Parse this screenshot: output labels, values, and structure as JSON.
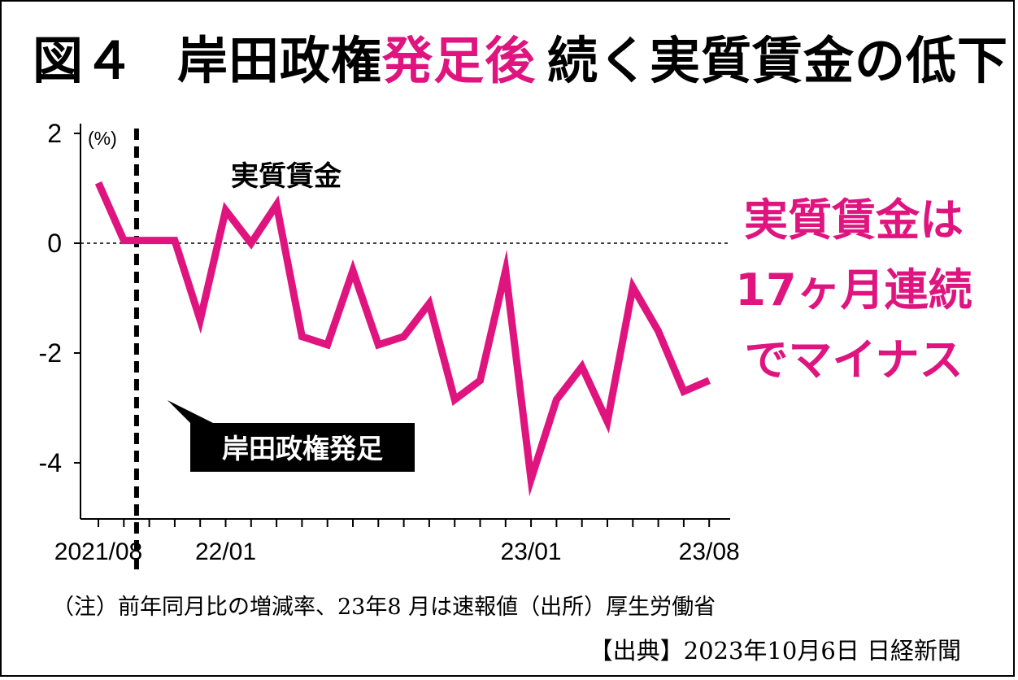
{
  "title": {
    "prefix": "図４",
    "part1": "岸田政権",
    "highlight": "発足後",
    "part2": "続く実質賃金の低下",
    "accent_color": "#e0147f"
  },
  "callout": {
    "line1": "実質賃金は",
    "line2": "17ヶ月連続",
    "line3": "でマイナス"
  },
  "note": "（注）前年同月比の増減率、23年8 月は速報値（出所）厚生労働省",
  "source": "【出典】2023年10月6日 日経新聞",
  "chart_data": {
    "type": "line",
    "unit_label": "(%)",
    "ylim": [
      -5,
      2
    ],
    "y_ticks": [
      2,
      0,
      -2,
      -4
    ],
    "y_tick_labels": [
      "2",
      "0",
      "-2",
      "-4"
    ],
    "x_tick_labels": [
      {
        "index": 0,
        "label": "2021/08"
      },
      {
        "index": 5,
        "label": "22/01"
      },
      {
        "index": 17,
        "label": "23/01"
      },
      {
        "index": 24,
        "label": "23/08"
      }
    ],
    "reference_line": 0,
    "event": {
      "index": 2,
      "label": "岸田政権発足"
    },
    "series": [
      {
        "name": "実質賃金",
        "color": "#e0147f",
        "x": [
          "2021/08",
          "2021/09",
          "2021/10",
          "2021/11",
          "2021/12",
          "2022/01",
          "2022/02",
          "2022/03",
          "2022/04",
          "2022/05",
          "2022/06",
          "2022/07",
          "2022/08",
          "2022/09",
          "2022/10",
          "2022/11",
          "2022/12",
          "2023/01",
          "2023/02",
          "2023/03",
          "2023/04",
          "2023/05",
          "2023/06",
          "2023/07",
          "2023/08"
        ],
        "values": [
          1.1,
          0.05,
          0.05,
          0.05,
          -1.4,
          0.6,
          0.0,
          0.7,
          -1.7,
          -1.85,
          -0.5,
          -1.85,
          -1.7,
          -1.1,
          -2.85,
          -2.5,
          -0.5,
          -4.3,
          -2.85,
          -2.25,
          -3.25,
          -0.8,
          -1.6,
          -2.7,
          -2.5
        ]
      }
    ]
  }
}
